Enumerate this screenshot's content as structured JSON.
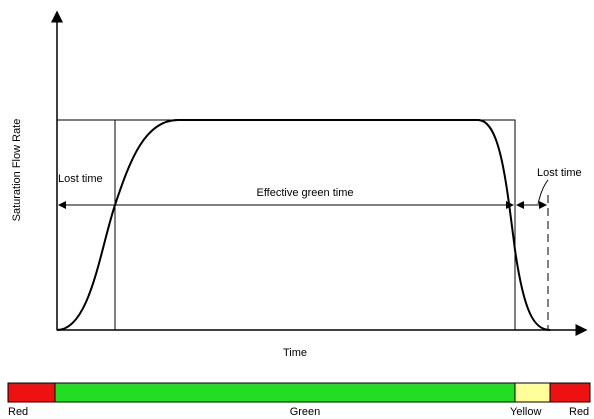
{
  "diagram": {
    "y_axis_label": "Saturation Flow Rate",
    "x_axis_label": "Time",
    "annotations": {
      "lost_time_start": "Lost time",
      "effective_green_time": "Effective green time",
      "lost_time_end": "Lost time"
    },
    "signal_phases": [
      {
        "label": "Red"
      },
      {
        "label": "Green"
      },
      {
        "label": "Yellow"
      },
      {
        "label": "Red"
      }
    ]
  }
}
